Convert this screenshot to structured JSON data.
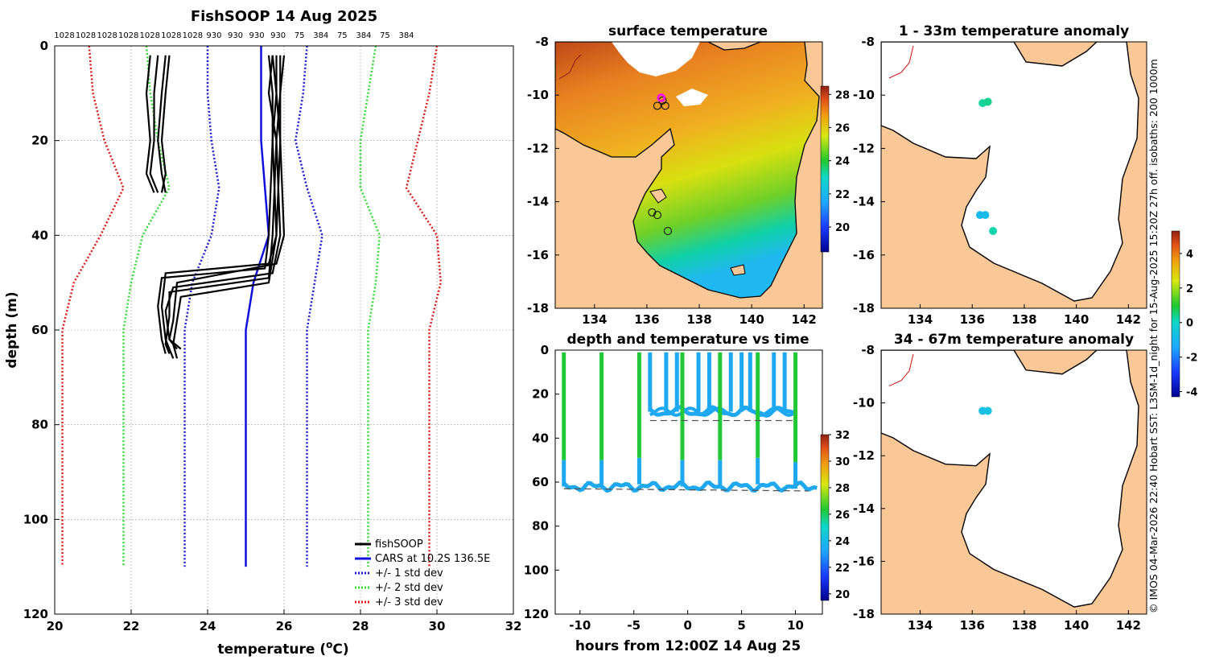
{
  "colors": {
    "profile": "#000000",
    "cars": "#1010dd",
    "std1": "#1a1ad0",
    "std2": "#33dd33",
    "std3": "#dd1a1a",
    "land": "#fac896",
    "coast": "#000000",
    "river": "#cc1111",
    "grid": "#999999",
    "dashed": "#555555"
  },
  "credit": "© IMOS 04-Mar-2026 22:40 Hobart SST: L3SM-1d_night for 15-Aug-2025 15:20Z 27h off. isobaths: 200  1000m",
  "chart_data": [
    {
      "id": "profile",
      "type": "line",
      "title": "FishSOOP 14 Aug 2025",
      "xlabel": "temperature (°C)",
      "xlabel_main": "temperature (",
      "xlabel_deg": "o",
      "xlabel_unit": "C)",
      "ylabel": "depth (m)",
      "xlim": [
        20,
        32
      ],
      "ylim": [
        0,
        120
      ],
      "xticks": [
        "20",
        "22",
        "24",
        "26",
        "28",
        "30",
        "32"
      ],
      "yticks": [
        "0",
        "20",
        "40",
        "60",
        "80",
        "100",
        "120"
      ],
      "top_labels": [
        "1028",
        "1028",
        "1028",
        "1028",
        "1028",
        "1028",
        "1028",
        "930",
        "930",
        "930",
        "930",
        "75",
        "384",
        "75",
        "384",
        "75",
        "384"
      ],
      "legend": [
        "fishSOOP",
        "CARS at 10.2S 136.5E",
        "+/- 1 std dev",
        "+/- 2 std dev",
        "+/- 3 std dev"
      ],
      "series": [
        {
          "name": "CARS mean",
          "color_key": "cars",
          "depth": [
            0,
            20,
            40,
            45,
            50,
            60,
            110
          ],
          "temp": [
            25.4,
            25.4,
            25.6,
            25.4,
            25.2,
            25.0,
            25.0
          ]
        },
        {
          "name": "+1 std",
          "color_key": "std1",
          "depth": [
            0,
            10,
            20,
            30,
            40,
            50,
            60,
            110
          ],
          "temp": [
            26.6,
            26.5,
            26.3,
            26.6,
            27.0,
            26.8,
            26.6,
            26.6
          ]
        },
        {
          "name": "-1 std",
          "color_key": "std1",
          "depth": [
            0,
            10,
            20,
            30,
            40,
            50,
            60,
            110
          ],
          "temp": [
            24.0,
            24.0,
            24.1,
            24.3,
            24.1,
            23.6,
            23.4,
            23.4
          ]
        },
        {
          "name": "+2 std",
          "color_key": "std2",
          "depth": [
            0,
            10,
            20,
            30,
            40,
            50,
            60,
            110
          ],
          "temp": [
            28.4,
            28.2,
            28.0,
            28.0,
            28.5,
            28.4,
            28.2,
            28.2
          ]
        },
        {
          "name": "-2 std",
          "color_key": "std2",
          "depth": [
            0,
            10,
            20,
            30,
            40,
            50,
            60,
            110
          ],
          "temp": [
            22.4,
            22.5,
            22.7,
            23.0,
            22.3,
            22.0,
            21.8,
            21.8
          ]
        },
        {
          "name": "+3 std",
          "color_key": "std3",
          "depth": [
            0,
            10,
            20,
            30,
            40,
            50,
            60,
            110
          ],
          "temp": [
            30.0,
            29.8,
            29.5,
            29.2,
            30.0,
            30.1,
            29.8,
            29.8
          ]
        },
        {
          "name": "-3 std",
          "color_key": "std3",
          "depth": [
            0,
            10,
            20,
            30,
            40,
            50,
            60,
            110
          ],
          "temp": [
            20.9,
            21.0,
            21.3,
            21.8,
            21.2,
            20.5,
            20.2,
            20.2
          ]
        }
      ],
      "profiles": [
        {
          "depth": [
            2,
            10,
            20,
            27,
            31
          ],
          "temp": [
            22.9,
            22.8,
            22.7,
            22.8,
            22.9
          ]
        },
        {
          "depth": [
            2,
            10,
            20,
            27,
            31
          ],
          "temp": [
            22.5,
            22.4,
            22.5,
            22.4,
            22.6
          ]
        },
        {
          "depth": [
            2,
            10,
            20,
            27,
            31
          ],
          "temp": [
            22.7,
            22.6,
            22.6,
            22.5,
            22.7
          ]
        },
        {
          "depth": [
            2,
            10,
            20,
            27,
            31
          ],
          "temp": [
            23.0,
            22.9,
            22.8,
            22.9,
            22.8
          ]
        },
        {
          "depth": [
            2,
            10,
            20,
            40,
            46,
            48,
            55,
            62,
            66
          ],
          "temp": [
            25.8,
            25.8,
            25.9,
            25.8,
            25.6,
            22.9,
            22.8,
            22.9,
            23.1
          ]
        },
        {
          "depth": [
            2,
            10,
            20,
            40,
            47,
            49,
            55,
            62,
            65
          ],
          "temp": [
            25.6,
            25.7,
            25.7,
            25.6,
            25.5,
            22.8,
            22.7,
            22.8,
            22.9
          ]
        },
        {
          "depth": [
            2,
            10,
            20,
            40,
            48,
            51,
            56,
            62,
            64
          ],
          "temp": [
            25.9,
            25.9,
            25.8,
            25.9,
            25.7,
            23.1,
            22.9,
            23.0,
            23.2
          ]
        },
        {
          "depth": [
            2,
            10,
            20,
            40,
            49,
            52,
            57,
            63,
            65
          ],
          "temp": [
            25.7,
            25.6,
            25.8,
            25.7,
            25.6,
            23.0,
            23.0,
            22.9,
            23.0
          ]
        },
        {
          "depth": [
            2,
            10,
            20,
            40,
            46,
            50,
            58,
            62,
            64
          ],
          "temp": [
            26.0,
            25.9,
            25.9,
            26.0,
            25.8,
            23.2,
            23.1,
            23.0,
            23.3
          ]
        },
        {
          "depth": [
            2,
            10,
            20,
            40,
            50,
            53,
            58,
            63,
            66
          ],
          "temp": [
            25.7,
            25.8,
            25.7,
            25.8,
            25.6,
            23.3,
            23.2,
            23.1,
            23.2
          ]
        }
      ]
    },
    {
      "id": "sst_map",
      "type": "heatmap",
      "title": "surface temperature",
      "xlim": [
        132.5,
        142.7
      ],
      "ylim": [
        -18,
        -8
      ],
      "xticks": [
        "134",
        "136",
        "138",
        "140",
        "142"
      ],
      "yticks": [
        "-8",
        "-10",
        "-12",
        "-14",
        "-16",
        "-18"
      ],
      "colorbar": {
        "min": 18.5,
        "max": 28.5,
        "ticks": [
          "20",
          "22",
          "24",
          "26",
          "28"
        ]
      },
      "stations": [
        [
          136.4,
          -10.4
        ],
        [
          136.7,
          -10.4
        ],
        [
          136.6,
          -10.2
        ],
        [
          136.2,
          -14.4
        ],
        [
          136.4,
          -14.5
        ],
        [
          136.8,
          -15.1
        ]
      ]
    },
    {
      "id": "depth_time",
      "type": "scatter",
      "title": "depth and temperature vs time",
      "xlabel": "hours from 12:00Z 14 Aug 25",
      "ylabel": "",
      "xlim": [
        -12.3,
        12.5
      ],
      "ylim": [
        0,
        120
      ],
      "xticks": [
        "-10",
        "-5",
        "0",
        "5",
        "10"
      ],
      "yticks": [
        "0",
        "20",
        "40",
        "60",
        "80",
        "100",
        "120"
      ],
      "colorbar": {
        "min": 19.5,
        "max": 32,
        "ticks": [
          "20",
          "22",
          "24",
          "26",
          "28",
          "30",
          "32"
        ]
      },
      "deep_casts": [
        -11.5,
        -8.0,
        -4.5,
        -0.5,
        3.0,
        6.5,
        10.0
      ],
      "shallow_casts": [
        -3.5,
        -2.0,
        -1.0,
        1.0,
        2.0,
        4.0,
        5.0,
        5.8,
        8.0,
        9.0
      ],
      "deep_bottom": [
        62,
        62,
        61,
        62,
        62,
        61,
        63
      ],
      "shallow_bottom": 28
    },
    {
      "id": "anom_shallow",
      "type": "heatmap",
      "title": "1 - 33m temperature anomaly",
      "xlim": [
        132.5,
        142.7
      ],
      "ylim": [
        -18,
        -8
      ],
      "xticks": [
        "134",
        "136",
        "138",
        "140",
        "142"
      ],
      "yticks": [
        "-8",
        "-10",
        "-12",
        "-14",
        "-16",
        "-18"
      ],
      "points": [
        [
          136.4,
          -10.3,
          0.3
        ],
        [
          136.6,
          -10.25,
          0.4
        ],
        [
          136.5,
          -14.5,
          -0.8
        ],
        [
          136.3,
          -14.5,
          -0.9
        ],
        [
          136.8,
          -15.1,
          0.2
        ]
      ]
    },
    {
      "id": "anom_deep",
      "type": "heatmap",
      "title": "34 - 67m temperature anomaly",
      "xlim": [
        132.5,
        142.7
      ],
      "ylim": [
        -18,
        -8
      ],
      "xticks": [
        "134",
        "136",
        "138",
        "140",
        "142"
      ],
      "yticks": [
        "-8",
        "-10",
        "-12",
        "-14",
        "-16",
        "-18"
      ],
      "points": [
        [
          136.4,
          -10.3,
          -0.7
        ],
        [
          136.6,
          -10.3,
          -0.6
        ]
      ],
      "colorbar": {
        "min": -4.3,
        "max": 5.3,
        "ticks": [
          "4",
          "2",
          "0",
          "-2",
          "-4"
        ]
      }
    }
  ]
}
